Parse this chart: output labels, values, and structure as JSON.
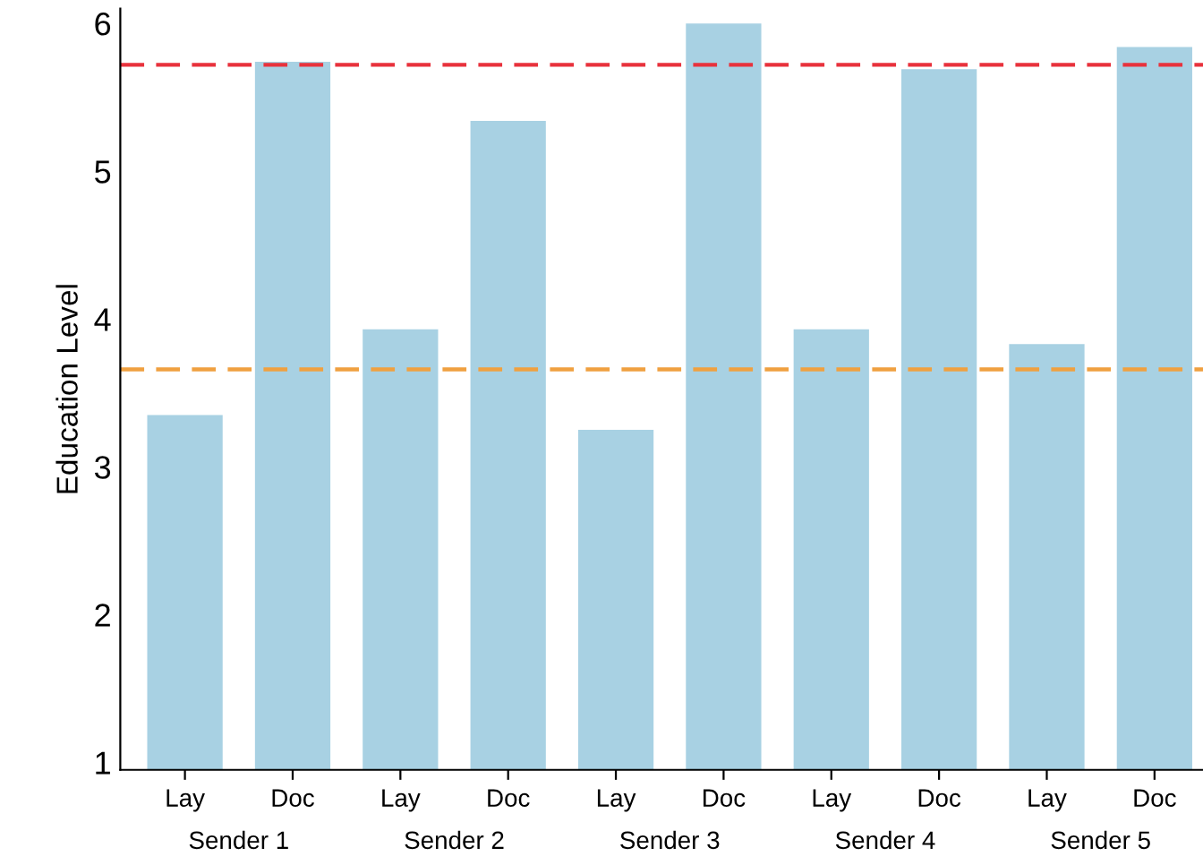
{
  "chart_data": {
    "type": "bar",
    "ylabel": "Education Level",
    "categories": [
      "Lay",
      "Doc",
      "Lay",
      "Doc",
      "Lay",
      "Doc",
      "Lay",
      "Doc",
      "Lay",
      "Doc"
    ],
    "values": [
      3.35,
      5.74,
      3.93,
      5.34,
      3.25,
      6.0,
      3.93,
      5.69,
      3.83,
      5.84
    ],
    "color": "#a8d1e3",
    "ylim": [
      0.95,
      6.1
    ],
    "yticks": [
      1,
      2,
      3,
      4,
      5,
      6
    ],
    "grid": false,
    "ref_lines": [
      {
        "axis": "y",
        "value": 5.72,
        "color": "#e8323c",
        "line_style": "dashed"
      },
      {
        "axis": "y",
        "value": 3.66,
        "color": "#f0a040",
        "line_style": "dashed"
      }
    ],
    "annotations": [
      "Sender 1",
      "Sender 2",
      "Sender 3",
      "Sender 4",
      "Sender 5"
    ]
  }
}
